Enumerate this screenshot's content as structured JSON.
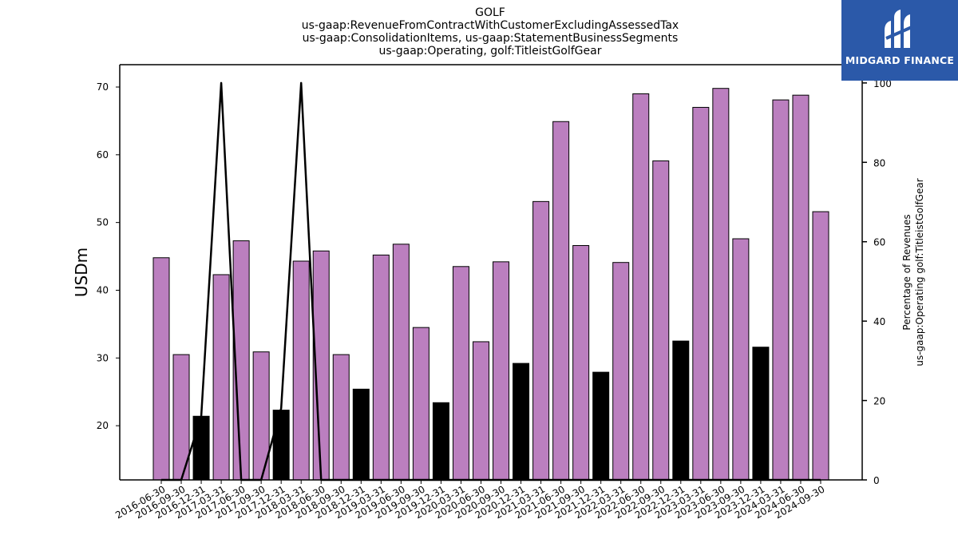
{
  "chart_data": {
    "type": "bar",
    "title_lines": [
      "GOLF",
      "us-gaap:RevenueFromContractWithCustomerExcludingAssessedTax",
      "us-gaap:ConsolidationItems, us-gaap:StatementBusinessSegments",
      "us-gaap:Operating, golf:TitleistGolfGear"
    ],
    "ylabel": "USDm",
    "ylabel_right_lines": [
      "Percentage of Revenues",
      "us-gaap:Operating golf:TitleistGolfGear"
    ],
    "categories": [
      "2016-06-30",
      "2016-09-30",
      "2016-12-31",
      "2017-03-31",
      "2017-06-30",
      "2017-09-30",
      "2017-12-31",
      "2018-03-31",
      "2018-06-30",
      "2018-09-30",
      "2018-12-31",
      "2019-03-31",
      "2019-06-30",
      "2019-09-30",
      "2019-12-31",
      "2020-03-31",
      "2020-06-30",
      "2020-09-30",
      "2020-12-31",
      "2021-03-31",
      "2021-06-30",
      "2021-09-30",
      "2021-12-31",
      "2022-03-31",
      "2022-06-30",
      "2022-09-30",
      "2022-12-31",
      "2023-03-31",
      "2023-06-30",
      "2023-09-30",
      "2023-12-31",
      "2024-03-31",
      "2024-06-30",
      "2024-09-30"
    ],
    "values": [
      44.8,
      30.5,
      21.4,
      42.3,
      47.3,
      30.9,
      22.3,
      44.3,
      45.8,
      30.5,
      25.4,
      45.2,
      46.8,
      34.5,
      23.4,
      43.5,
      32.4,
      44.2,
      29.2,
      53.1,
      64.9,
      46.6,
      27.9,
      44.1,
      69.0,
      59.1,
      32.5,
      67.0,
      69.8,
      47.6,
      31.6,
      68.1,
      68.8,
      51.6
    ],
    "bar_colors": [
      "#bb7fbf",
      "#bb7fbf",
      "#000000",
      "#bb7fbf",
      "#bb7fbf",
      "#bb7fbf",
      "#000000",
      "#bb7fbf",
      "#bb7fbf",
      "#bb7fbf",
      "#000000",
      "#bb7fbf",
      "#bb7fbf",
      "#bb7fbf",
      "#000000",
      "#bb7fbf",
      "#bb7fbf",
      "#bb7fbf",
      "#000000",
      "#bb7fbf",
      "#bb7fbf",
      "#bb7fbf",
      "#000000",
      "#bb7fbf",
      "#bb7fbf",
      "#bb7fbf",
      "#000000",
      "#bb7fbf",
      "#bb7fbf",
      "#bb7fbf",
      "#000000",
      "#bb7fbf",
      "#bb7fbf",
      "#bb7fbf"
    ],
    "ylim": [
      12,
      73.3
    ],
    "yticks": [
      20,
      30,
      40,
      50,
      60,
      70
    ],
    "series_right": {
      "values": [
        0,
        0,
        16,
        100,
        0,
        0,
        18,
        100,
        0,
        0,
        0,
        0,
        0,
        0,
        0,
        0,
        0,
        0,
        0,
        0,
        0,
        0,
        0,
        0,
        0,
        0,
        0,
        0,
        0,
        0,
        0,
        0,
        0,
        0
      ],
      "ylim": [
        0,
        104.6
      ],
      "yticks": [
        0,
        20,
        40,
        60,
        80,
        100
      ]
    },
    "grid": false,
    "legend": "none"
  },
  "logo": {
    "text": "MIDGARD FINANCE",
    "color": "#2b59a9"
  }
}
